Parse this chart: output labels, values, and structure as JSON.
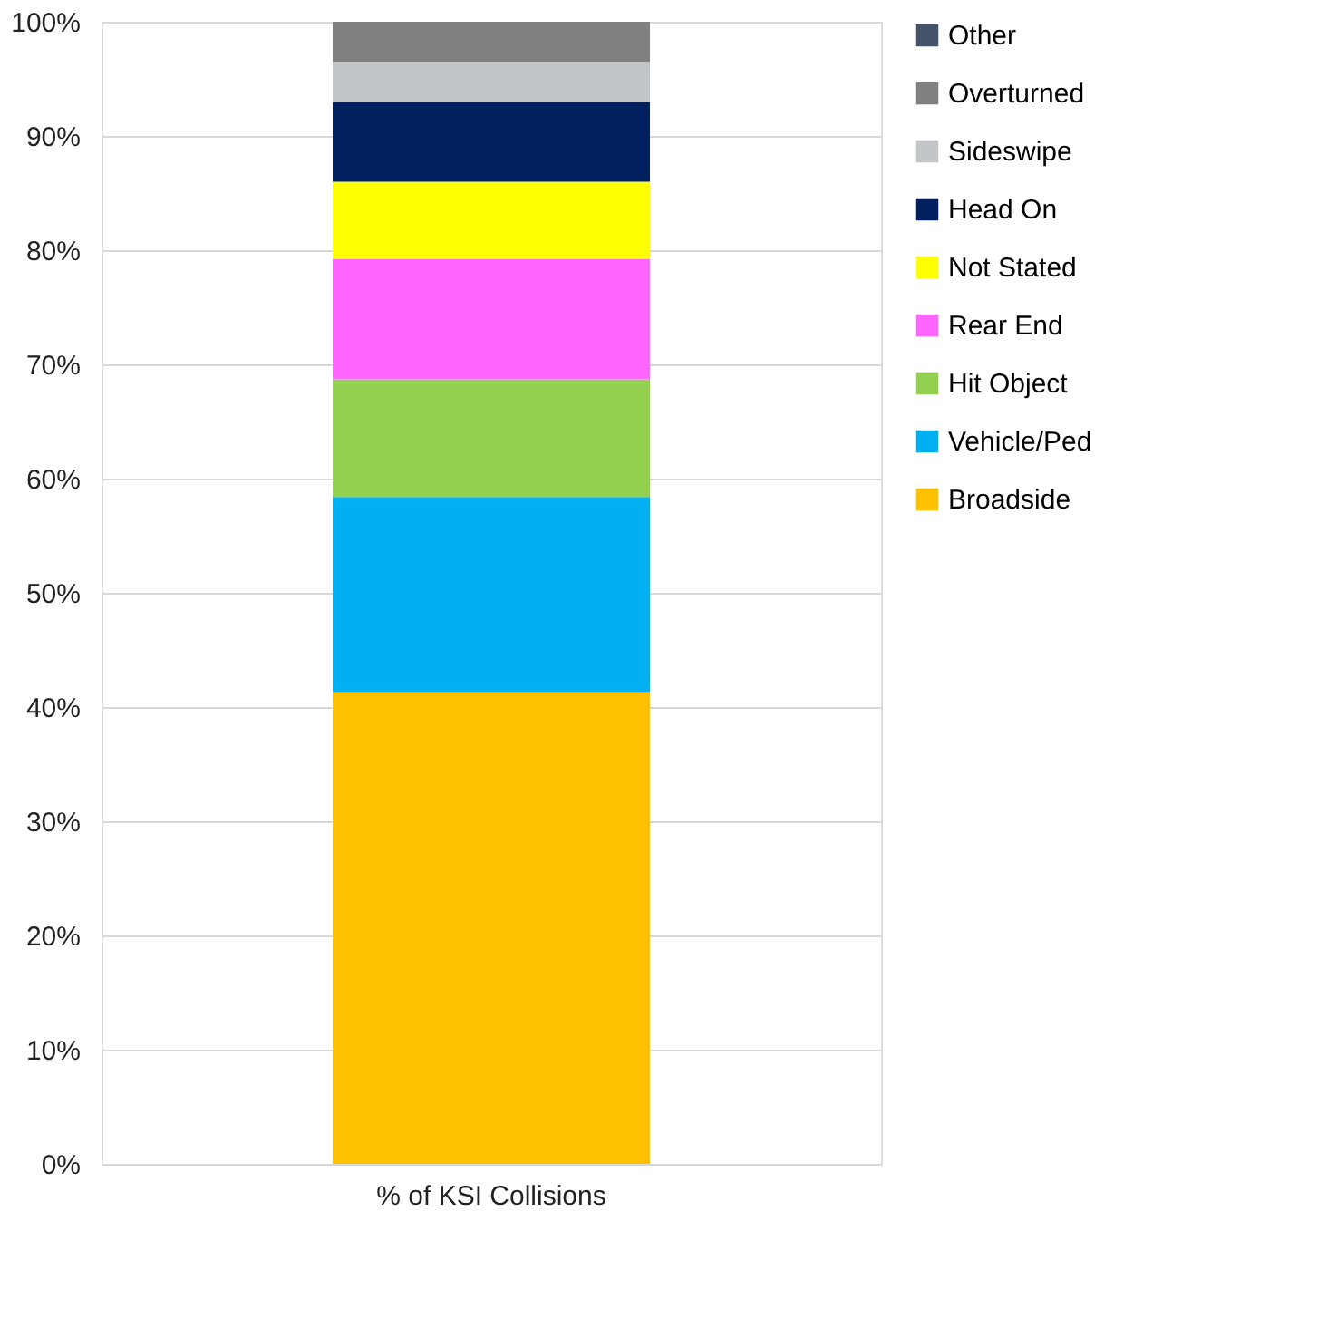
{
  "chart_data": {
    "type": "bar",
    "stacked": true,
    "categories": [
      "% of KSI Collisions"
    ],
    "series": [
      {
        "name": "Broadside",
        "color": "#ffc000",
        "values": [
          41.3
        ]
      },
      {
        "name": "Vehicle/Ped",
        "color": "#00b0f0",
        "values": [
          17.1
        ]
      },
      {
        "name": "Hit Object",
        "color": "#92d050",
        "values": [
          10.3
        ]
      },
      {
        "name": "Rear End",
        "color": "#ff66ff",
        "values": [
          10.5
        ]
      },
      {
        "name": "Not Stated",
        "color": "#ffff00",
        "values": [
          6.8
        ]
      },
      {
        "name": "Head On",
        "color": "#002060",
        "values": [
          7.0
        ]
      },
      {
        "name": "Sideswipe",
        "color": "#c3c6c9",
        "values": [
          3.5
        ]
      },
      {
        "name": "Overturned",
        "color": "#808080",
        "values": [
          3.5
        ]
      },
      {
        "name": "Other",
        "color": "#44546a",
        "values": [
          0
        ]
      }
    ],
    "ylim": [
      0,
      100
    ],
    "yticks": [
      {
        "value": 0,
        "label": "0%"
      },
      {
        "value": 10,
        "label": "10%"
      },
      {
        "value": 20,
        "label": "20%"
      },
      {
        "value": 30,
        "label": "30%"
      },
      {
        "value": 40,
        "label": "40%"
      },
      {
        "value": 50,
        "label": "50%"
      },
      {
        "value": 60,
        "label": "60%"
      },
      {
        "value": 70,
        "label": "70%"
      },
      {
        "value": 80,
        "label": "80%"
      },
      {
        "value": 90,
        "label": "90%"
      },
      {
        "value": 100,
        "label": "100%"
      }
    ],
    "grid": "y",
    "legend": "right"
  }
}
